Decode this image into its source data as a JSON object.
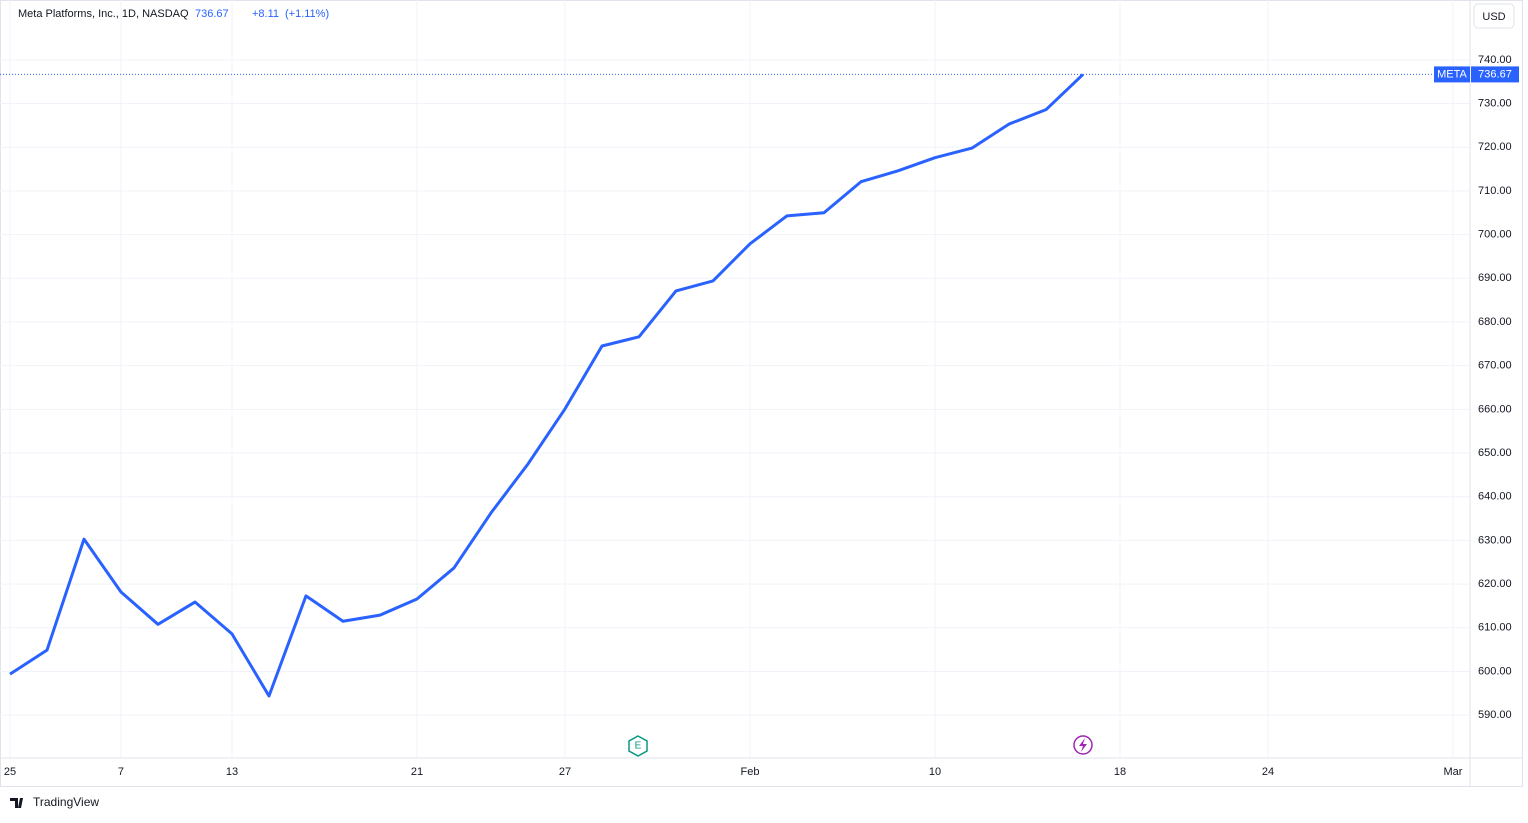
{
  "chart_data": {
    "type": "line",
    "title": "Meta Platforms, Inc., 1D, NASDAQ",
    "change": "+8.11",
    "change_percent": "(+1.11%)",
    "currency": "USD",
    "symbol": "META",
    "brand": "TradingView",
    "x": [
      0,
      1,
      2,
      3,
      4,
      5,
      6,
      7,
      8,
      9,
      10,
      11,
      12,
      13,
      14,
      15,
      16,
      17,
      18,
      19,
      20,
      21,
      22,
      23,
      24,
      25,
      26,
      27,
      28,
      29
    ],
    "series": [
      {
        "name": "META",
        "color": "#2962ff",
        "values": [
          599.4,
          604.9,
          630.3,
          618.2,
          610.8,
          615.9,
          608.6,
          594.4,
          617.3,
          611.5,
          612.9,
          616.6,
          623.7,
          636.3,
          647.5,
          660.1,
          674.5,
          676.6,
          687.1,
          689.4,
          697.9,
          704.3,
          705.0,
          712.1,
          714.6,
          717.6,
          719.8,
          725.3,
          728.6,
          736.67
        ]
      }
    ],
    "xlim": [
      -0.27,
      39.46
    ],
    "xticks": [
      {
        "value": 0,
        "label": "25"
      },
      {
        "value": 3,
        "label": "7"
      },
      {
        "value": 6,
        "label": "13"
      },
      {
        "value": 11,
        "label": "21"
      },
      {
        "value": 15,
        "label": "27"
      },
      {
        "value": 20,
        "label": "Feb"
      },
      {
        "value": 25,
        "label": "10"
      },
      {
        "value": 30,
        "label": "18"
      },
      {
        "value": 34,
        "label": "24"
      },
      {
        "value": 39,
        "label": "Mar"
      }
    ],
    "ylim": [
      580.2,
      753.7
    ],
    "yticks": [
      {
        "value": 590,
        "label": "590.00"
      },
      {
        "value": 600,
        "label": "600.00"
      },
      {
        "value": 610,
        "label": "610.00"
      },
      {
        "value": 620,
        "label": "620.00"
      },
      {
        "value": 630,
        "label": "630.00"
      },
      {
        "value": 640,
        "label": "640.00"
      },
      {
        "value": 650,
        "label": "650.00"
      },
      {
        "value": 660,
        "label": "660.00"
      },
      {
        "value": 670,
        "label": "670.00"
      },
      {
        "value": 680,
        "label": "680.00"
      },
      {
        "value": 690,
        "label": "690.00"
      },
      {
        "value": 700,
        "label": "700.00"
      },
      {
        "value": 710,
        "label": "710.00"
      },
      {
        "value": 720,
        "label": "720.00"
      },
      {
        "value": 730,
        "label": "730.00"
      },
      {
        "value": 740,
        "label": "740.00"
      }
    ],
    "grid": true
  }
}
